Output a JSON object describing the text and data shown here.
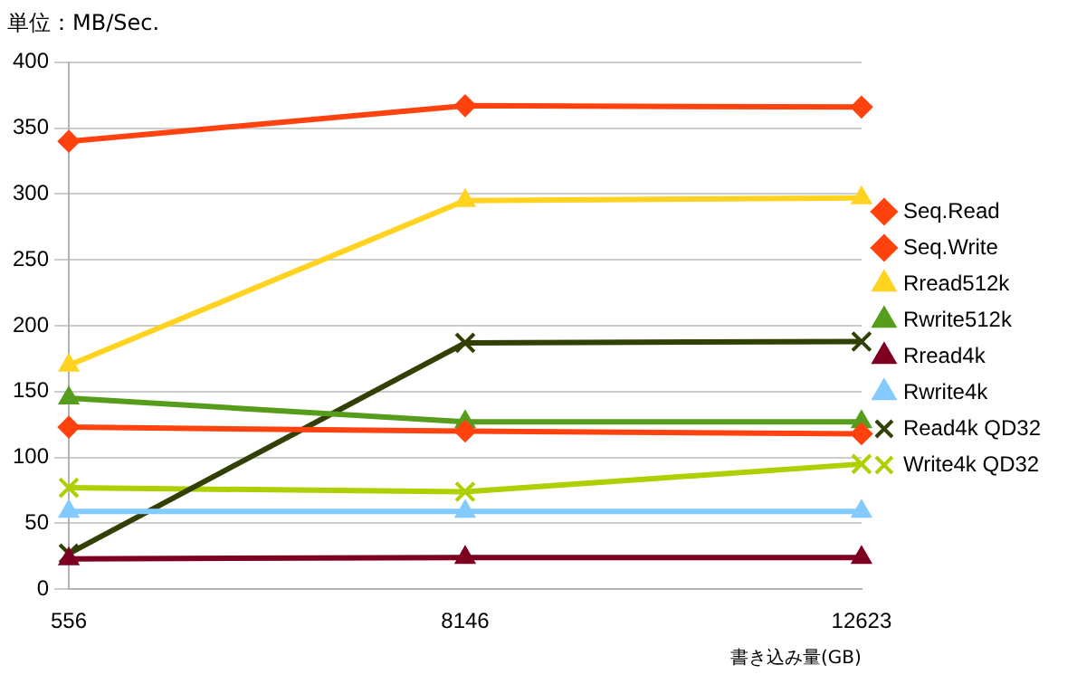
{
  "chart_data": {
    "type": "line",
    "title": "単位：MB/Sec.",
    "xlabel": "書き込み量(GB)",
    "categories": [
      "556",
      "8146",
      "12623"
    ],
    "series": [
      {
        "name": "Seq.Read",
        "color": "#ff420e",
        "marker": "diamond",
        "values": [
          340,
          367,
          366
        ]
      },
      {
        "name": "Seq.Write",
        "color": "#ff420e",
        "marker": "diamond",
        "values": [
          123,
          120,
          118
        ]
      },
      {
        "name": "Rread512k",
        "color": "#ffd320",
        "marker": "triangle",
        "values": [
          170,
          295,
          297
        ]
      },
      {
        "name": "Rwrite512k",
        "color": "#579d1c",
        "marker": "triangle",
        "values": [
          145,
          127,
          127
        ]
      },
      {
        "name": "Rread4k",
        "color": "#7e0021",
        "marker": "triangle",
        "values": [
          23,
          24,
          24
        ]
      },
      {
        "name": "Rwrite4k",
        "color": "#83caff",
        "marker": "triangle",
        "values": [
          59,
          59,
          59
        ]
      },
      {
        "name": "Read4k QD32",
        "color": "#314004",
        "marker": "cross",
        "values": [
          27,
          187,
          188
        ]
      },
      {
        "name": "Write4k QD32",
        "color": "#aecf00",
        "marker": "cross",
        "values": [
          77,
          74,
          95
        ]
      }
    ],
    "ylim": [
      0,
      400
    ],
    "yticks": [
      0,
      50,
      100,
      150,
      200,
      250,
      300,
      350,
      400
    ],
    "grid": "y",
    "legend": "right"
  }
}
